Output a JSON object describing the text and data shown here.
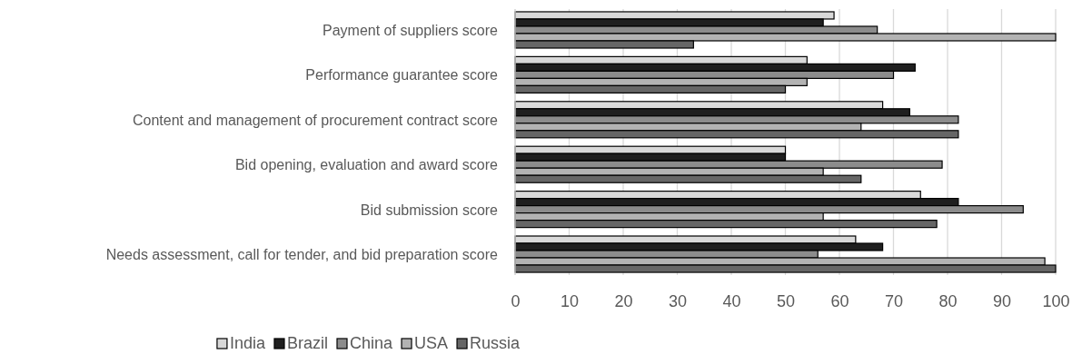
{
  "chart_data": {
    "type": "bar",
    "orientation": "horizontal",
    "categories": [
      "Payment of suppliers score",
      "Performance guarantee score",
      "Content and management of procurement contract score",
      "Bid opening, evaluation and award score",
      "Bid submission score",
      "Needs assessment, call for tender, and bid preparation score"
    ],
    "series": [
      {
        "name": "India",
        "color": "#d9d9d9",
        "values": [
          59,
          54,
          68,
          50,
          75,
          63
        ]
      },
      {
        "name": "Brazil",
        "color": "#1f1f1f",
        "values": [
          57,
          74,
          73,
          50,
          82,
          68
        ]
      },
      {
        "name": "China",
        "color": "#8c8c8c",
        "values": [
          67,
          70,
          82,
          79,
          94,
          56
        ]
      },
      {
        "name": "USA",
        "color": "#b3b3b3",
        "values": [
          100,
          54,
          64,
          57,
          57,
          98
        ]
      },
      {
        "name": "Russia",
        "color": "#666666",
        "values": [
          33,
          50,
          82,
          64,
          78,
          100
        ]
      }
    ],
    "xlim": [
      0,
      100
    ],
    "xticks": [
      0,
      10,
      20,
      30,
      40,
      50,
      60,
      70,
      80,
      90,
      100
    ],
    "grid": "x",
    "legend": "bottom"
  }
}
